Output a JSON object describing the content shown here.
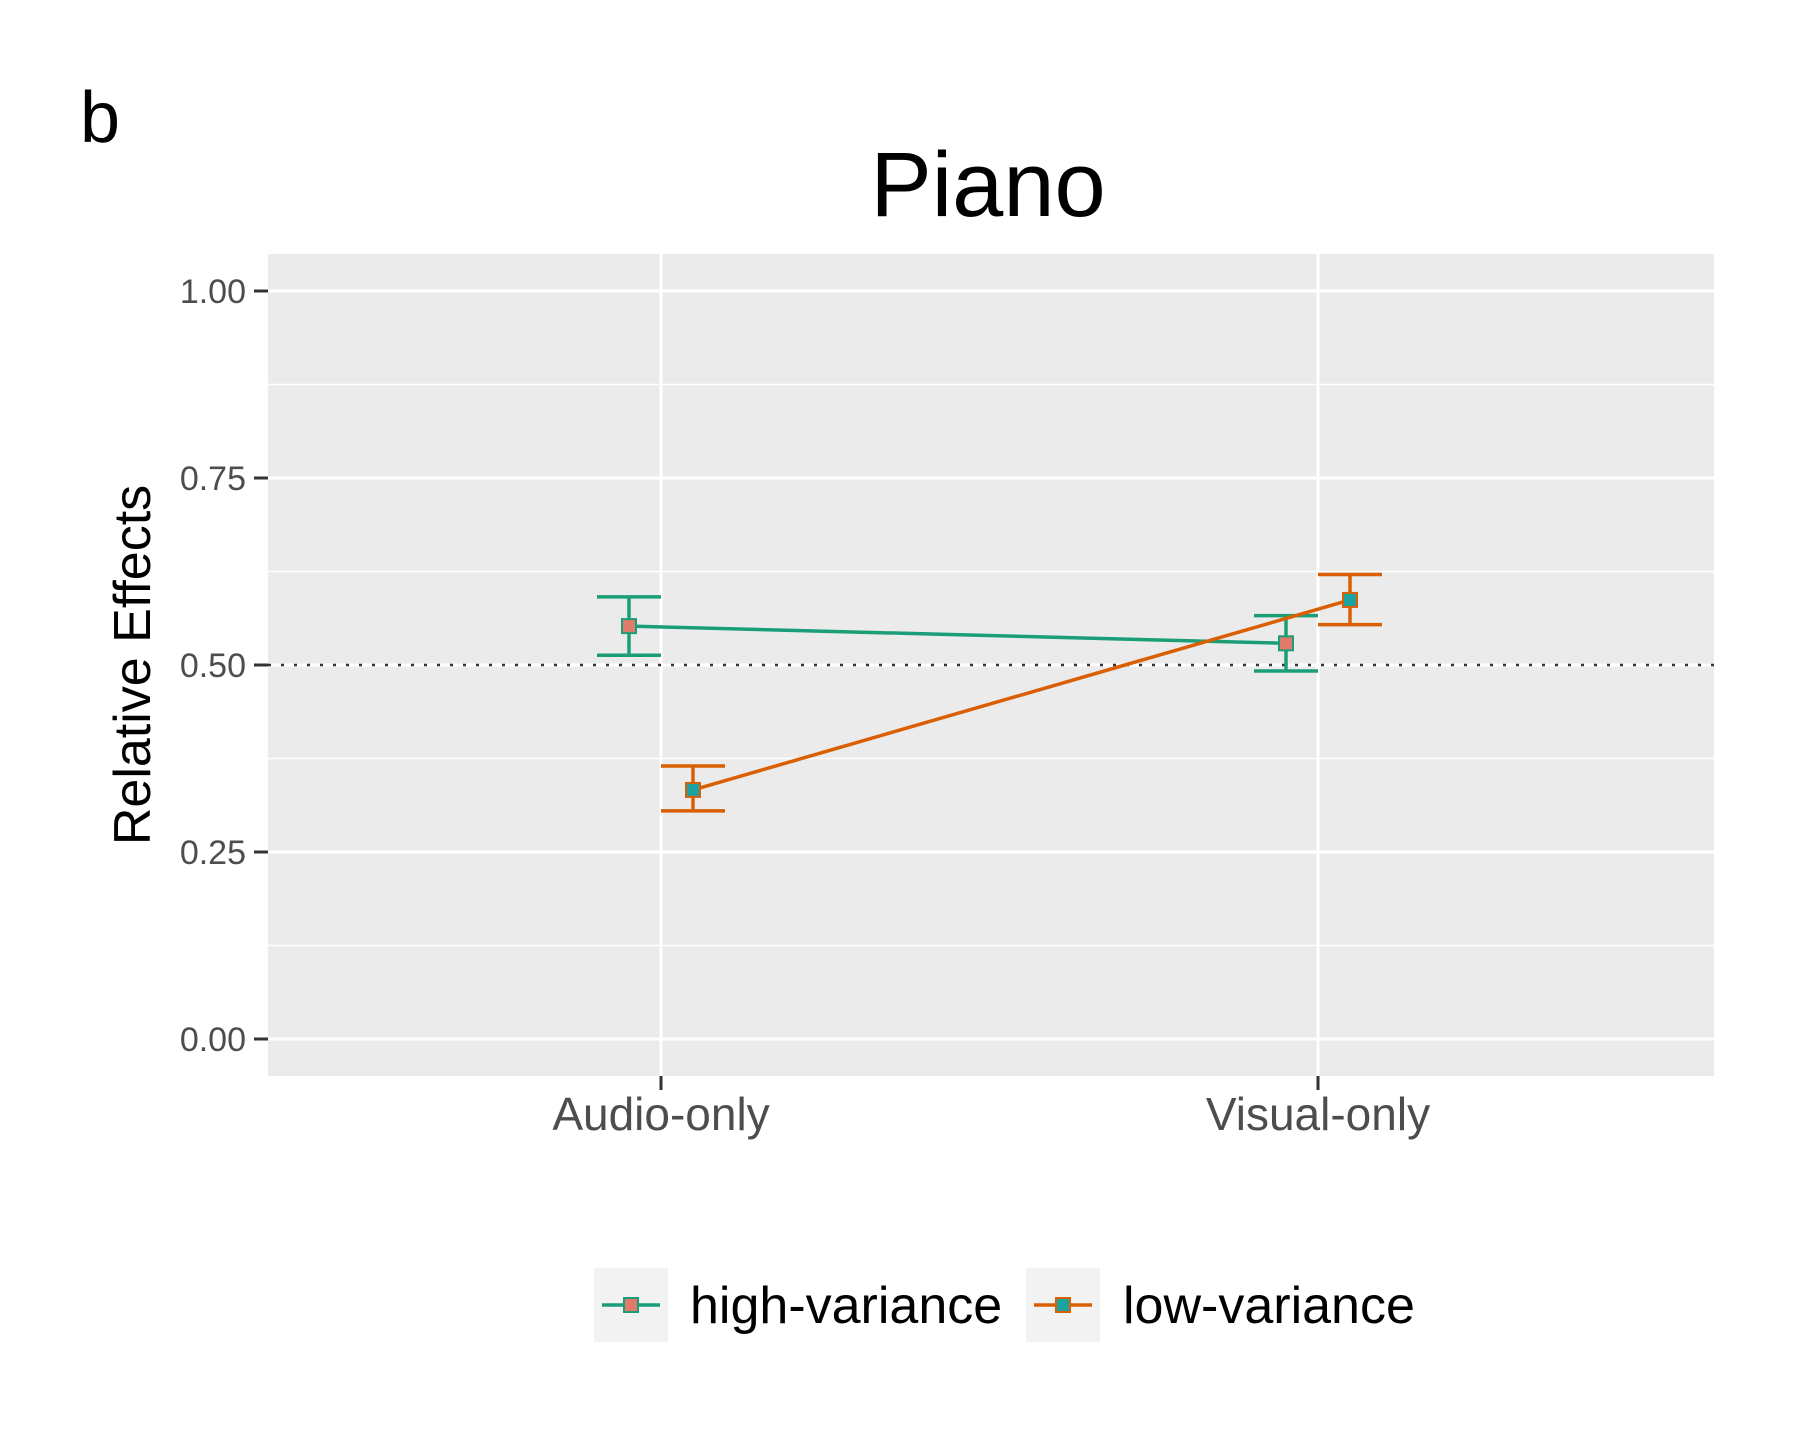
{
  "panel_label": "b",
  "chart_data": {
    "type": "line",
    "title": "Piano",
    "xlabel": "",
    "ylabel": "Relative Effects",
    "categories": [
      "Audio-only",
      "Visual-only"
    ],
    "y_ticks": [
      0.0,
      0.25,
      0.5,
      0.75,
      1.0
    ],
    "y_tick_labels": [
      "0.00",
      "0.25",
      "0.50",
      "0.75",
      "1.00"
    ],
    "ylim": [
      -0.05,
      1.05
    ],
    "reference_line": 0.5,
    "grid": true,
    "legend_position": "bottom",
    "series": [
      {
        "name": "high-variance",
        "color": "#1b9e77",
        "point_fill": "#e07a6a",
        "values": [
          0.552,
          0.529
        ],
        "lower": [
          0.513,
          0.492
        ],
        "upper": [
          0.591,
          0.566
        ]
      },
      {
        "name": "low-variance",
        "color": "#d95f02",
        "point_fill": "#1aa3a0",
        "values": [
          0.333,
          0.587
        ],
        "lower": [
          0.305,
          0.554
        ],
        "upper": [
          0.365,
          0.621
        ]
      }
    ]
  }
}
